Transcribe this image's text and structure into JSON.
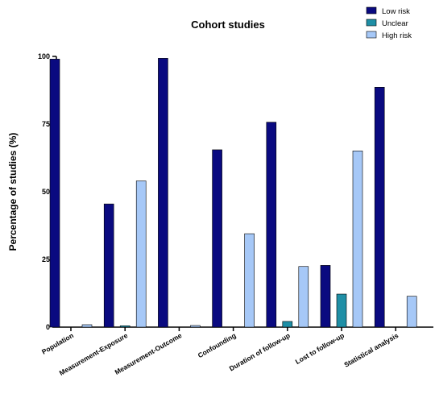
{
  "chart_data": {
    "type": "bar",
    "title": "Cohort studies",
    "ylabel": "Percentage of studies (%)",
    "xlabel": "",
    "ylim": [
      0,
      100
    ],
    "yticks": [
      "0",
      "25",
      "50",
      "75",
      "100"
    ],
    "categories": [
      "Population",
      "Measurement-Exposure",
      "Measurement-Outcome",
      "Confounding",
      "Duration of follow-up",
      "Lost to follow-up",
      "Statistical analysis"
    ],
    "series": [
      {
        "name": "Low risk",
        "color": "#0a0a80",
        "values": [
          99,
          45.5,
          99.3,
          65.5,
          75.7,
          22.8,
          88.6
        ]
      },
      {
        "name": "Unclear",
        "color": "#1f8fa6",
        "values": [
          0,
          0.5,
          0,
          0,
          2.1,
          12.2,
          0
        ]
      },
      {
        "name": "High risk",
        "color": "#a6c8f7",
        "values": [
          0.9,
          54,
          0.6,
          34.5,
          22.4,
          65.1,
          11.4
        ]
      }
    ],
    "legend_position": "top-right",
    "grid": false
  }
}
